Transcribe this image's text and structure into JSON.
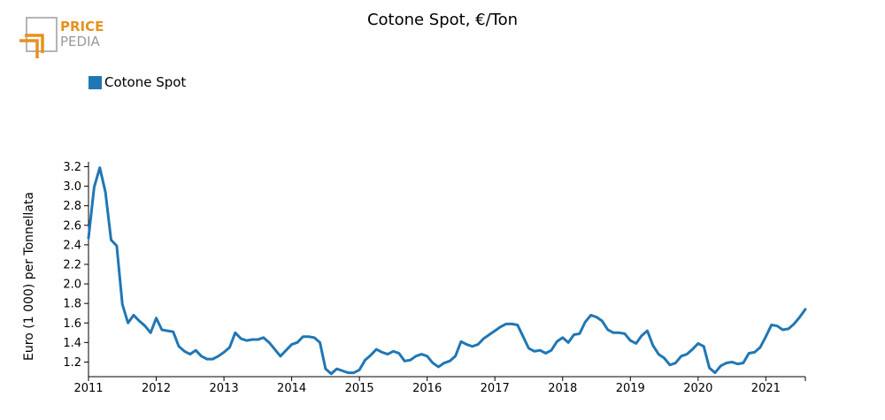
{
  "brand": {
    "line1": "PRICE",
    "line2": "PEDIA"
  },
  "chart_data": {
    "type": "line",
    "title": "Cotone Spot, €/Ton",
    "ylabel": "Euro (1 000) per Tonnellata",
    "xlabel": "",
    "legend": {
      "position": "top-left",
      "entries": [
        "Cotone Spot"
      ]
    },
    "grid": false,
    "ylim": [
      1.05,
      3.25
    ],
    "yticks": [
      1.2,
      1.4,
      1.6,
      1.8,
      2.0,
      2.2,
      2.4,
      2.6,
      2.8,
      3.0,
      3.2
    ],
    "ytick_labels": [
      "1.2",
      "1.4",
      "1.6",
      "1.8",
      "2.0",
      "2.2",
      "2.4",
      "2.6",
      "2.8",
      "3.0",
      "3.2"
    ],
    "xlim": [
      "2011-01",
      "2021-08"
    ],
    "xticks": [
      "2011",
      "2012",
      "2013",
      "2014",
      "2015",
      "2016",
      "2017",
      "2018",
      "2019",
      "2020",
      "2021"
    ],
    "series": [
      {
        "name": "Cotone Spot",
        "color": "#2077b4",
        "x": [
          "2011-01",
          "2011-02",
          "2011-03",
          "2011-04",
          "2011-05",
          "2011-06",
          "2011-07",
          "2011-08",
          "2011-09",
          "2011-10",
          "2011-11",
          "2011-12",
          "2012-01",
          "2012-02",
          "2012-03",
          "2012-04",
          "2012-05",
          "2012-06",
          "2012-07",
          "2012-08",
          "2012-09",
          "2012-10",
          "2012-11",
          "2012-12",
          "2013-01",
          "2013-02",
          "2013-03",
          "2013-04",
          "2013-05",
          "2013-06",
          "2013-07",
          "2013-08",
          "2013-09",
          "2013-10",
          "2013-11",
          "2013-12",
          "2014-01",
          "2014-02",
          "2014-03",
          "2014-04",
          "2014-05",
          "2014-06",
          "2014-07",
          "2014-08",
          "2014-09",
          "2014-10",
          "2014-11",
          "2014-12",
          "2015-01",
          "2015-02",
          "2015-03",
          "2015-04",
          "2015-05",
          "2015-06",
          "2015-07",
          "2015-08",
          "2015-09",
          "2015-10",
          "2015-11",
          "2015-12",
          "2016-01",
          "2016-02",
          "2016-03",
          "2016-04",
          "2016-05",
          "2016-06",
          "2016-07",
          "2016-08",
          "2016-09",
          "2016-10",
          "2016-11",
          "2016-12",
          "2017-01",
          "2017-02",
          "2017-03",
          "2017-04",
          "2017-05",
          "2017-06",
          "2017-07",
          "2017-08",
          "2017-09",
          "2017-10",
          "2017-11",
          "2017-12",
          "2018-01",
          "2018-02",
          "2018-03",
          "2018-04",
          "2018-05",
          "2018-06",
          "2018-07",
          "2018-08",
          "2018-09",
          "2018-10",
          "2018-11",
          "2018-12",
          "2019-01",
          "2019-02",
          "2019-03",
          "2019-04",
          "2019-05",
          "2019-06",
          "2019-07",
          "2019-08",
          "2019-09",
          "2019-10",
          "2019-11",
          "2019-12",
          "2020-01",
          "2020-02",
          "2020-03",
          "2020-04",
          "2020-05",
          "2020-06",
          "2020-07",
          "2020-08",
          "2020-09",
          "2020-10",
          "2020-11",
          "2020-12",
          "2021-01",
          "2021-02",
          "2021-03",
          "2021-04",
          "2021-05",
          "2021-06",
          "2021-07",
          "2021-08"
        ],
        "values": [
          2.47,
          2.99,
          3.19,
          2.94,
          2.45,
          2.39,
          1.79,
          1.6,
          1.68,
          1.62,
          1.57,
          1.5,
          1.65,
          1.53,
          1.52,
          1.51,
          1.36,
          1.31,
          1.28,
          1.32,
          1.26,
          1.23,
          1.23,
          1.26,
          1.3,
          1.35,
          1.5,
          1.44,
          1.42,
          1.43,
          1.43,
          1.45,
          1.4,
          1.33,
          1.26,
          1.32,
          1.38,
          1.4,
          1.46,
          1.46,
          1.45,
          1.4,
          1.13,
          1.08,
          1.13,
          1.11,
          1.09,
          1.09,
          1.12,
          1.22,
          1.27,
          1.33,
          1.3,
          1.28,
          1.31,
          1.29,
          1.21,
          1.22,
          1.26,
          1.28,
          1.26,
          1.19,
          1.15,
          1.19,
          1.21,
          1.26,
          1.41,
          1.38,
          1.36,
          1.38,
          1.44,
          1.48,
          1.52,
          1.56,
          1.59,
          1.59,
          1.58,
          1.46,
          1.34,
          1.31,
          1.32,
          1.29,
          1.32,
          1.41,
          1.45,
          1.4,
          1.48,
          1.49,
          1.61,
          1.68,
          1.66,
          1.62,
          1.53,
          1.5,
          1.5,
          1.49,
          1.42,
          1.39,
          1.47,
          1.52,
          1.37,
          1.28,
          1.24,
          1.17,
          1.19,
          1.26,
          1.28,
          1.33,
          1.39,
          1.36,
          1.14,
          1.09,
          1.16,
          1.19,
          1.2,
          1.18,
          1.19,
          1.29,
          1.3,
          1.35,
          1.46,
          1.58,
          1.57,
          1.53,
          1.54,
          1.59,
          1.66,
          1.74
        ]
      }
    ]
  }
}
